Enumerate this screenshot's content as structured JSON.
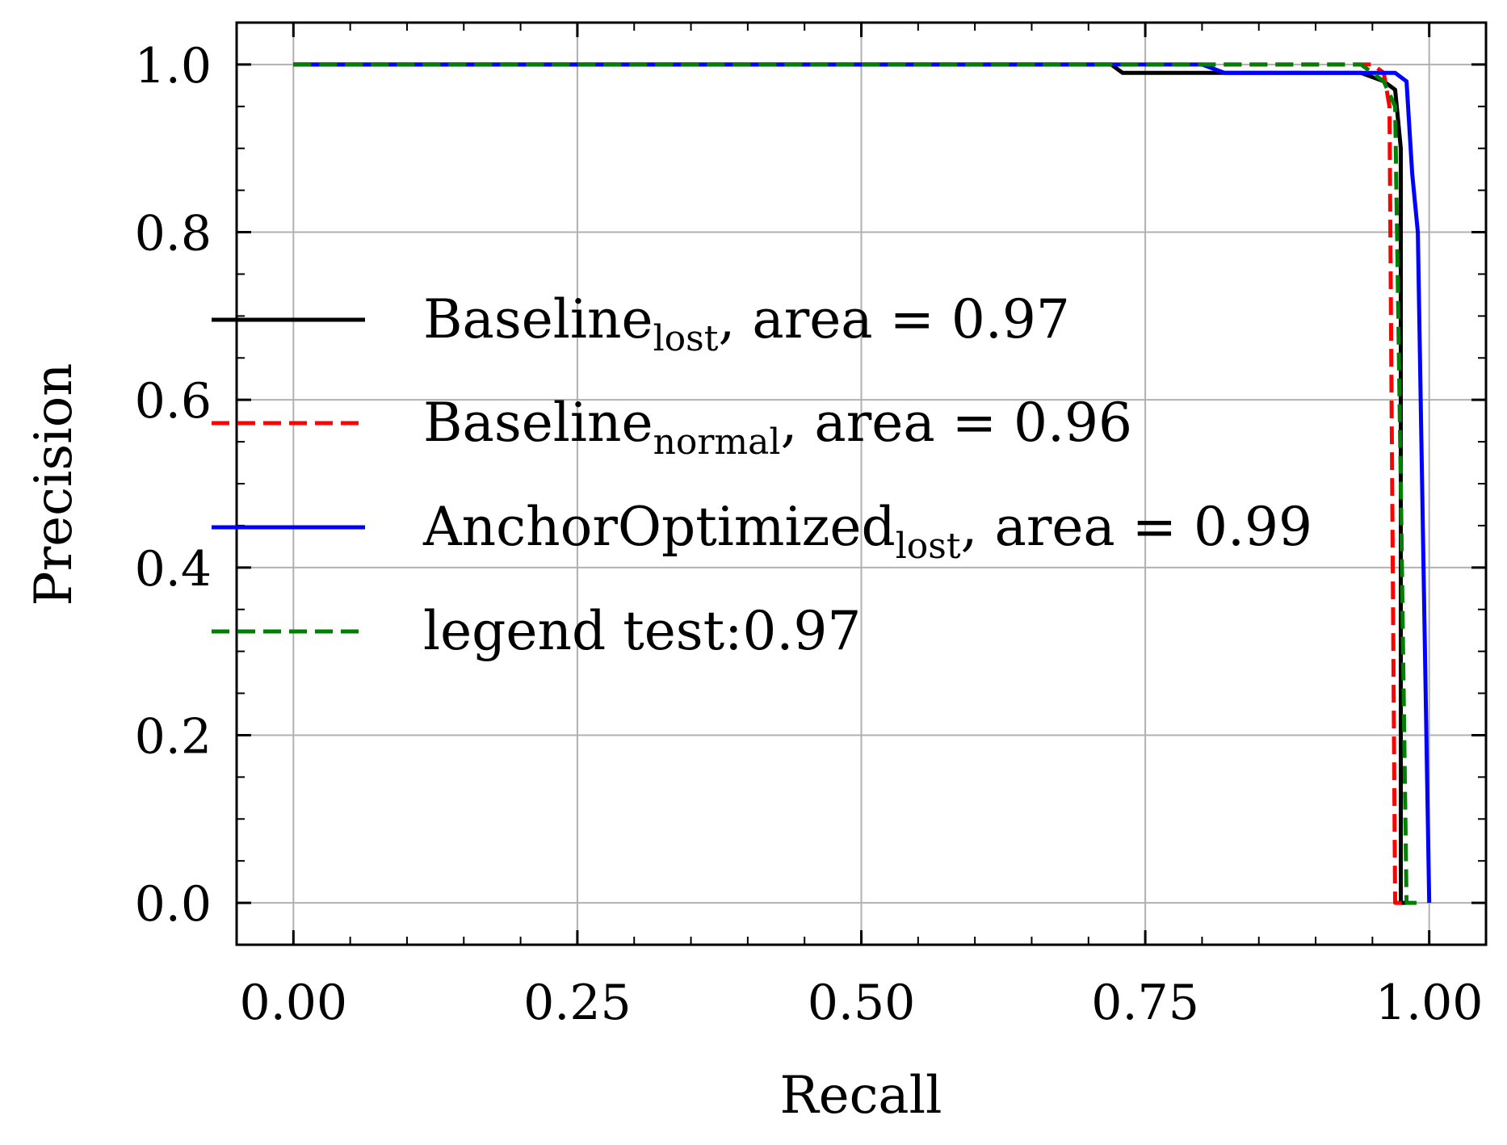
{
  "chart_data": {
    "type": "line",
    "title": "",
    "xlabel": "Recall",
    "ylabel": "Precision",
    "xlim": [
      -0.05,
      1.05
    ],
    "ylim": [
      -0.05,
      1.05
    ],
    "grid": true,
    "legend_position": "center-left",
    "xticks": [
      0.0,
      0.25,
      0.5,
      0.75,
      1.0
    ],
    "xtick_labels": [
      "0.00",
      "0.25",
      "0.50",
      "0.75",
      "1.00"
    ],
    "yticks": [
      0.0,
      0.2,
      0.4,
      0.6,
      0.8,
      1.0
    ],
    "ytick_labels": [
      "0.0",
      "0.2",
      "0.4",
      "0.6",
      "0.8",
      "1.0"
    ],
    "series": [
      {
        "name": "Baseline_lost",
        "legend": {
          "base": "Baseline",
          "sub": "lost",
          "rest": ", area = 0.97"
        },
        "color": "#000000",
        "style": "solid",
        "x": [
          0.0,
          0.72,
          0.73,
          0.94,
          0.96,
          0.97,
          0.975,
          0.975,
          0.98
        ],
        "y": [
          1.0,
          1.0,
          0.99,
          0.99,
          0.98,
          0.97,
          0.9,
          0.0,
          0.0
        ]
      },
      {
        "name": "Baseline_normal",
        "legend": {
          "base": "Baseline",
          "sub": "normal",
          "rest": ", area = 0.96"
        },
        "color": "#ff0000",
        "style": "dashed",
        "x": [
          0.0,
          0.95,
          0.96,
          0.965,
          0.97,
          0.98
        ],
        "y": [
          1.0,
          1.0,
          0.99,
          0.95,
          0.0,
          0.0
        ]
      },
      {
        "name": "AnchorOptimized_lost",
        "legend": {
          "base": "AnchorOptimized",
          "sub": "lost",
          "rest": ", area = 0.99"
        },
        "color": "#0000ff",
        "style": "solid",
        "x": [
          0.0,
          0.8,
          0.82,
          0.96,
          0.97,
          0.98,
          0.985,
          0.99,
          1.0,
          1.0
        ],
        "y": [
          1.0,
          1.0,
          0.99,
          0.99,
          0.99,
          0.98,
          0.87,
          0.8,
          0.0,
          0.0
        ]
      },
      {
        "name": "legend test",
        "legend": {
          "base": "legend test:0.97",
          "sub": "",
          "rest": ""
        },
        "color": "#008000",
        "style": "dashed",
        "x": [
          0.0,
          0.94,
          0.96,
          0.97,
          0.975,
          0.98,
          0.99
        ],
        "y": [
          1.0,
          1.0,
          0.98,
          0.95,
          0.5,
          0.0,
          0.0
        ]
      }
    ]
  }
}
